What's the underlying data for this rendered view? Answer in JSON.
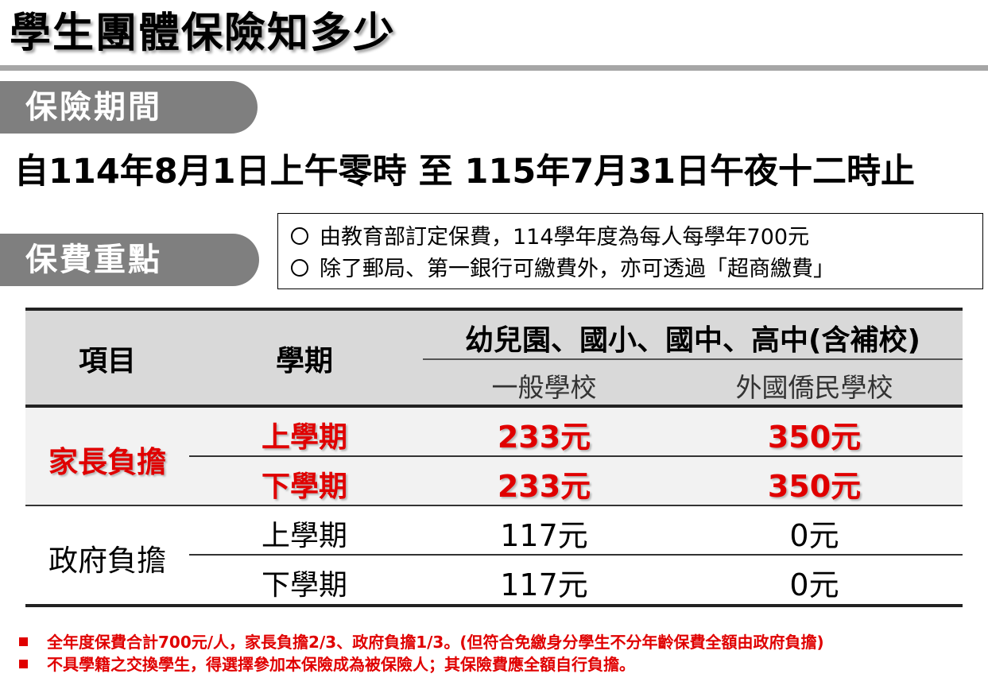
{
  "title": "學生團體保險知多少",
  "period": {
    "heading": "保險期間",
    "text": "自114年8月1日上午零時 至 115年7月31日午夜十二時止"
  },
  "fees": {
    "heading": "保費重點",
    "notes": [
      "由教育部訂定保費，114學年度為每人每學年700元",
      "除了郵局、第一銀行可繳費外，亦可透過「超商繳費」"
    ]
  },
  "table": {
    "col_item": "項目",
    "col_term": "學期",
    "col_group": "幼兒園、國小、國中、高中(含補校)",
    "col_general": "一般學校",
    "col_foreign": "外國僑民學校",
    "rows": [
      {
        "category": "家長負擔",
        "highlight": true,
        "terms": [
          {
            "term": "上學期",
            "general": "233元",
            "foreign": "350元"
          },
          {
            "term": "下學期",
            "general": "233元",
            "foreign": "350元"
          }
        ]
      },
      {
        "category": "政府負擔",
        "highlight": false,
        "terms": [
          {
            "term": "上學期",
            "general": "117元",
            "foreign": "0元"
          },
          {
            "term": "下學期",
            "general": "117元",
            "foreign": "0元"
          }
        ]
      }
    ]
  },
  "footnotes": [
    "全年度保費合計700元/人，家長負擔2/3、政府負擔1/3。(但符合免繳身分學生不分年齡保費全額由政府負擔)",
    "不具學籍之交換學生，得選擇參加本保險成為被保險人；其保險費應全額自行負擔。"
  ],
  "colors": {
    "accent_red": "#e00000",
    "pill_gray": "#7f7f7f",
    "header_gray": "#d9d9d9"
  }
}
